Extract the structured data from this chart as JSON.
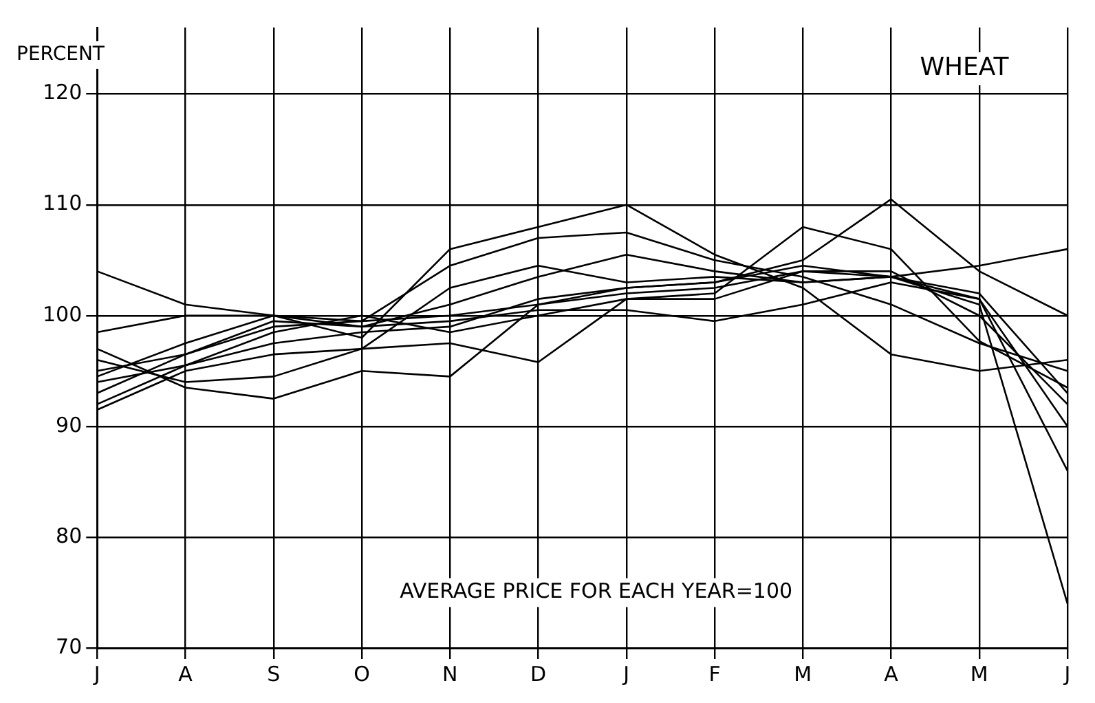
{
  "chart_data": {
    "type": "line",
    "title": "WHEAT",
    "ylabel": "PERCENT",
    "annotations": [
      "AVERAGE PRICE FOR EACH YEAR=100"
    ],
    "categories": [
      "J",
      "A",
      "S",
      "O",
      "N",
      "D",
      "J",
      "F",
      "M",
      "A",
      "M",
      "J"
    ],
    "ylim": [
      70,
      126
    ],
    "yticks": [
      70,
      80,
      90,
      100,
      110,
      120
    ],
    "grid": true,
    "series": [
      {
        "color": "#000000",
        "values": [
          104,
          101,
          100,
          99.5,
          100,
          101,
          102,
          102.5,
          104,
          103.5,
          102,
          93
        ]
      },
      {
        "color": "#000000",
        "values": [
          98.5,
          100,
          100,
          99,
          101,
          103.5,
          105.5,
          104,
          103,
          103.5,
          101,
          74
        ]
      },
      {
        "color": "#000000",
        "values": [
          97,
          93.5,
          92.5,
          95,
          94.5,
          101,
          102.5,
          103,
          104.5,
          103.5,
          101.5,
          86
        ]
      },
      {
        "color": "#000000",
        "values": [
          96,
          94,
          94.5,
          97,
          102.5,
          104.5,
          103,
          103.5,
          103,
          103.5,
          104.5,
          106
        ]
      },
      {
        "color": "#000000",
        "values": [
          95,
          96.5,
          99,
          99.5,
          104.5,
          107,
          107.5,
          105,
          103.5,
          101,
          97.5,
          95
        ]
      },
      {
        "color": "#000000",
        "values": [
          94.5,
          97.5,
          100,
          98,
          106,
          108,
          110,
          105.5,
          102.5,
          96.5,
          95,
          96
        ]
      },
      {
        "color": "#000000",
        "values": [
          94,
          95.5,
          97.5,
          98.5,
          99,
          101.5,
          102.5,
          103,
          105,
          110.5,
          104,
          100
        ]
      },
      {
        "color": "#000000",
        "values": [
          93,
          96.5,
          99.5,
          99,
          99.5,
          100.5,
          100.5,
          99.5,
          101,
          103,
          101.5,
          90
        ]
      },
      {
        "color": "#000000",
        "values": [
          92,
          95.5,
          98.5,
          100,
          98.5,
          100,
          101.5,
          101.5,
          104,
          104,
          100,
          92
        ]
      },
      {
        "color": "#000000",
        "values": [
          91.5,
          95,
          96.5,
          97,
          97.5,
          95.8,
          101.5,
          102,
          108,
          106,
          97.7,
          93.5
        ]
      }
    ]
  }
}
